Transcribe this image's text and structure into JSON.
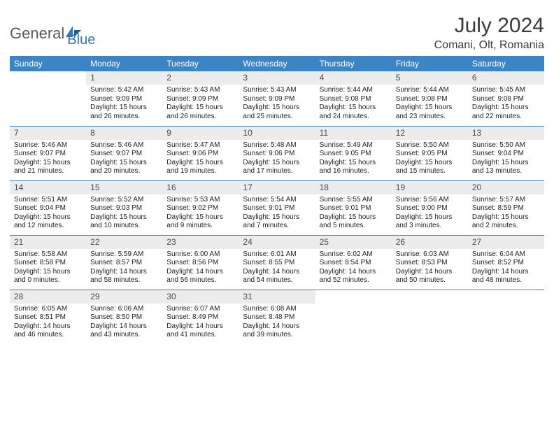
{
  "logo": {
    "part1": "General",
    "part2": "Blue"
  },
  "title": "July 2024",
  "location": "Comani, Olt, Romania",
  "colors": {
    "header_bg": "#3b85c4",
    "header_fg": "#ffffff",
    "daynum_bg": "#ececec",
    "sep": "#3b85c4",
    "logo_gray": "#5a5a5a",
    "logo_blue": "#2e78b8"
  },
  "day_headers": [
    "Sunday",
    "Monday",
    "Tuesday",
    "Wednesday",
    "Thursday",
    "Friday",
    "Saturday"
  ],
  "weeks": [
    [
      null,
      {
        "n": "1",
        "sr": "Sunrise: 5:42 AM",
        "ss": "Sunset: 9:09 PM",
        "d1": "Daylight: 15 hours",
        "d2": "and 26 minutes."
      },
      {
        "n": "2",
        "sr": "Sunrise: 5:43 AM",
        "ss": "Sunset: 9:09 PM",
        "d1": "Daylight: 15 hours",
        "d2": "and 26 minutes."
      },
      {
        "n": "3",
        "sr": "Sunrise: 5:43 AM",
        "ss": "Sunset: 9:09 PM",
        "d1": "Daylight: 15 hours",
        "d2": "and 25 minutes."
      },
      {
        "n": "4",
        "sr": "Sunrise: 5:44 AM",
        "ss": "Sunset: 9:08 PM",
        "d1": "Daylight: 15 hours",
        "d2": "and 24 minutes."
      },
      {
        "n": "5",
        "sr": "Sunrise: 5:44 AM",
        "ss": "Sunset: 9:08 PM",
        "d1": "Daylight: 15 hours",
        "d2": "and 23 minutes."
      },
      {
        "n": "6",
        "sr": "Sunrise: 5:45 AM",
        "ss": "Sunset: 9:08 PM",
        "d1": "Daylight: 15 hours",
        "d2": "and 22 minutes."
      }
    ],
    [
      {
        "n": "7",
        "sr": "Sunrise: 5:46 AM",
        "ss": "Sunset: 9:07 PM",
        "d1": "Daylight: 15 hours",
        "d2": "and 21 minutes."
      },
      {
        "n": "8",
        "sr": "Sunrise: 5:46 AM",
        "ss": "Sunset: 9:07 PM",
        "d1": "Daylight: 15 hours",
        "d2": "and 20 minutes."
      },
      {
        "n": "9",
        "sr": "Sunrise: 5:47 AM",
        "ss": "Sunset: 9:06 PM",
        "d1": "Daylight: 15 hours",
        "d2": "and 19 minutes."
      },
      {
        "n": "10",
        "sr": "Sunrise: 5:48 AM",
        "ss": "Sunset: 9:06 PM",
        "d1": "Daylight: 15 hours",
        "d2": "and 17 minutes."
      },
      {
        "n": "11",
        "sr": "Sunrise: 5:49 AM",
        "ss": "Sunset: 9:05 PM",
        "d1": "Daylight: 15 hours",
        "d2": "and 16 minutes."
      },
      {
        "n": "12",
        "sr": "Sunrise: 5:50 AM",
        "ss": "Sunset: 9:05 PM",
        "d1": "Daylight: 15 hours",
        "d2": "and 15 minutes."
      },
      {
        "n": "13",
        "sr": "Sunrise: 5:50 AM",
        "ss": "Sunset: 9:04 PM",
        "d1": "Daylight: 15 hours",
        "d2": "and 13 minutes."
      }
    ],
    [
      {
        "n": "14",
        "sr": "Sunrise: 5:51 AM",
        "ss": "Sunset: 9:04 PM",
        "d1": "Daylight: 15 hours",
        "d2": "and 12 minutes."
      },
      {
        "n": "15",
        "sr": "Sunrise: 5:52 AM",
        "ss": "Sunset: 9:03 PM",
        "d1": "Daylight: 15 hours",
        "d2": "and 10 minutes."
      },
      {
        "n": "16",
        "sr": "Sunrise: 5:53 AM",
        "ss": "Sunset: 9:02 PM",
        "d1": "Daylight: 15 hours",
        "d2": "and 9 minutes."
      },
      {
        "n": "17",
        "sr": "Sunrise: 5:54 AM",
        "ss": "Sunset: 9:01 PM",
        "d1": "Daylight: 15 hours",
        "d2": "and 7 minutes."
      },
      {
        "n": "18",
        "sr": "Sunrise: 5:55 AM",
        "ss": "Sunset: 9:01 PM",
        "d1": "Daylight: 15 hours",
        "d2": "and 5 minutes."
      },
      {
        "n": "19",
        "sr": "Sunrise: 5:56 AM",
        "ss": "Sunset: 9:00 PM",
        "d1": "Daylight: 15 hours",
        "d2": "and 3 minutes."
      },
      {
        "n": "20",
        "sr": "Sunrise: 5:57 AM",
        "ss": "Sunset: 8:59 PM",
        "d1": "Daylight: 15 hours",
        "d2": "and 2 minutes."
      }
    ],
    [
      {
        "n": "21",
        "sr": "Sunrise: 5:58 AM",
        "ss": "Sunset: 8:58 PM",
        "d1": "Daylight: 15 hours",
        "d2": "and 0 minutes."
      },
      {
        "n": "22",
        "sr": "Sunrise: 5:59 AM",
        "ss": "Sunset: 8:57 PM",
        "d1": "Daylight: 14 hours",
        "d2": "and 58 minutes."
      },
      {
        "n": "23",
        "sr": "Sunrise: 6:00 AM",
        "ss": "Sunset: 8:56 PM",
        "d1": "Daylight: 14 hours",
        "d2": "and 56 minutes."
      },
      {
        "n": "24",
        "sr": "Sunrise: 6:01 AM",
        "ss": "Sunset: 8:55 PM",
        "d1": "Daylight: 14 hours",
        "d2": "and 54 minutes."
      },
      {
        "n": "25",
        "sr": "Sunrise: 6:02 AM",
        "ss": "Sunset: 8:54 PM",
        "d1": "Daylight: 14 hours",
        "d2": "and 52 minutes."
      },
      {
        "n": "26",
        "sr": "Sunrise: 6:03 AM",
        "ss": "Sunset: 8:53 PM",
        "d1": "Daylight: 14 hours",
        "d2": "and 50 minutes."
      },
      {
        "n": "27",
        "sr": "Sunrise: 6:04 AM",
        "ss": "Sunset: 8:52 PM",
        "d1": "Daylight: 14 hours",
        "d2": "and 48 minutes."
      }
    ],
    [
      {
        "n": "28",
        "sr": "Sunrise: 6:05 AM",
        "ss": "Sunset: 8:51 PM",
        "d1": "Daylight: 14 hours",
        "d2": "and 46 minutes."
      },
      {
        "n": "29",
        "sr": "Sunrise: 6:06 AM",
        "ss": "Sunset: 8:50 PM",
        "d1": "Daylight: 14 hours",
        "d2": "and 43 minutes."
      },
      {
        "n": "30",
        "sr": "Sunrise: 6:07 AM",
        "ss": "Sunset: 8:49 PM",
        "d1": "Daylight: 14 hours",
        "d2": "and 41 minutes."
      },
      {
        "n": "31",
        "sr": "Sunrise: 6:08 AM",
        "ss": "Sunset: 8:48 PM",
        "d1": "Daylight: 14 hours",
        "d2": "and 39 minutes."
      },
      null,
      null,
      null
    ]
  ]
}
